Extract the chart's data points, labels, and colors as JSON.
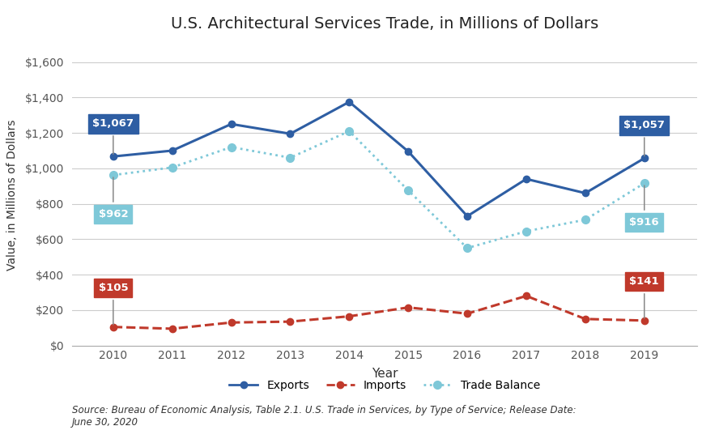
{
  "years": [
    2010,
    2011,
    2012,
    2013,
    2014,
    2015,
    2016,
    2017,
    2018,
    2019
  ],
  "exports": [
    1067,
    1100,
    1250,
    1195,
    1375,
    1095,
    730,
    940,
    860,
    1057
  ],
  "imports": [
    105,
    95,
    130,
    135,
    165,
    215,
    180,
    280,
    150,
    141
  ],
  "trade_balance": [
    962,
    1005,
    1120,
    1060,
    1210,
    875,
    550,
    645,
    710,
    916
  ],
  "exports_color": "#2E5EA3",
  "imports_color": "#C0392B",
  "trade_balance_color": "#7EC8D8",
  "annotation_exports_2010": "$1,067",
  "annotation_exports_2019": "$1,057",
  "annotation_imports_2010": "$105",
  "annotation_imports_2019": "$141",
  "annotation_balance_2010": "$962",
  "annotation_balance_2019": "$916",
  "title": "U.S. Architectural Services Trade, in Millions of Dollars",
  "xlabel": "Year",
  "ylabel": "Value, in Millions of Dollars",
  "ylim": [
    0,
    1700
  ],
  "yticks": [
    0,
    200,
    400,
    600,
    800,
    1000,
    1200,
    1400,
    1600
  ],
  "ytick_labels": [
    "$0",
    "$200",
    "$400",
    "$600",
    "$800",
    "$1,000",
    "$1,200",
    "$1,400",
    "$1,600"
  ],
  "source_text": "Source: Bureau of Economic Analysis, Table 2.1. U.S. Trade in Services, by Type of Service; Release Date:\nJune 30, 2020",
  "background_color": "#FFFFFF",
  "grid_color": "#CCCCCC"
}
